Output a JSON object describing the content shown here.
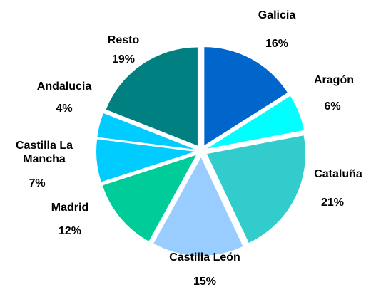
{
  "chart_data": {
    "type": "pie",
    "categories": [
      "Galicia",
      "Aragón",
      "Cataluña",
      "Castilla León",
      "Madrid",
      "Castilla La Mancha",
      "Andalucia",
      "Resto"
    ],
    "values": [
      16,
      6,
      21,
      15,
      12,
      7,
      4,
      19
    ],
    "value_labels": [
      "16%",
      "6%",
      "21%",
      "15%",
      "12%",
      "7%",
      "4%",
      "19%"
    ],
    "colors": [
      "#0066cc",
      "#00ffff",
      "#33cccc",
      "#99ccff",
      "#00cc99",
      "#00ccff",
      "#00ccff",
      "#008080"
    ]
  }
}
